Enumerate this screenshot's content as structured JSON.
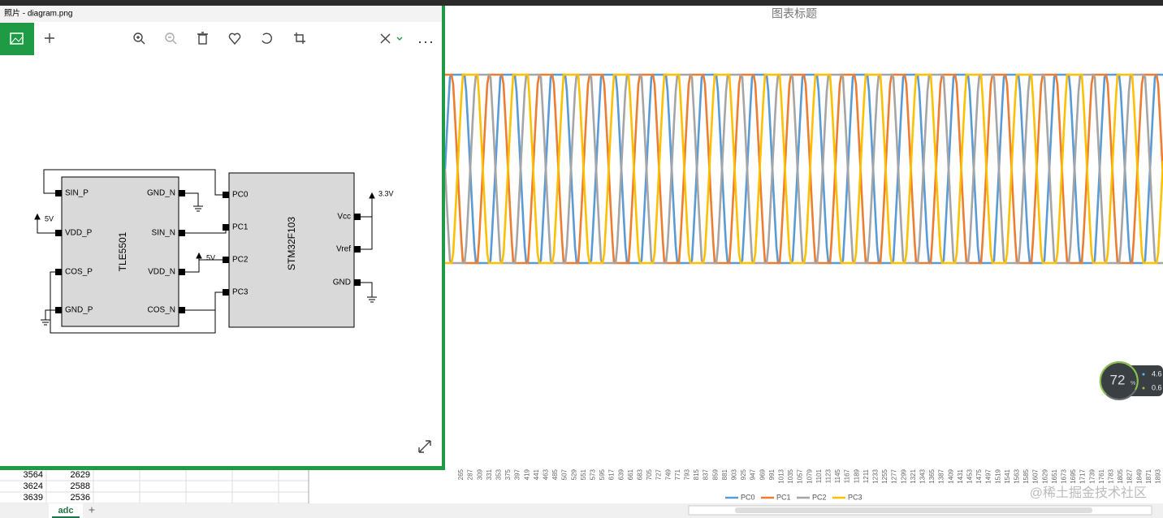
{
  "photos_window": {
    "title": "照片 - diagram.png"
  },
  "diagram": {
    "tle": {
      "name": "TLE5501",
      "left_pins": [
        "SIN_P",
        "VDD_P",
        "COS_P",
        "GND_P"
      ],
      "right_pins": [
        "GND_N",
        "SIN_N",
        "VDD_N",
        "COS_N"
      ]
    },
    "mcu": {
      "name": "STM32F103",
      "left_pins": [
        "PC0",
        "PC1",
        "PC2",
        "PC3"
      ],
      "right_pins": [
        "Vcc",
        "Vref",
        "GND"
      ]
    },
    "power": [
      "5V",
      "5V",
      "3.3V"
    ]
  },
  "chart": {
    "title": "图表标题",
    "series": [
      {
        "name": "PC0",
        "color": "#5b9bd5"
      },
      {
        "name": "PC1",
        "color": "#ed7d31"
      },
      {
        "name": "PC2",
        "color": "#a5a5a5"
      },
      {
        "name": "PC3",
        "color": "#ffc000"
      }
    ],
    "x_labels": [
      "265",
      "287",
      "309",
      "331",
      "353",
      "375",
      "397",
      "419",
      "441",
      "463",
      "485",
      "507",
      "529",
      "551",
      "573",
      "595",
      "617",
      "639",
      "661",
      "683",
      "705",
      "727",
      "749",
      "771",
      "793",
      "815",
      "837",
      "859",
      "881",
      "903",
      "925",
      "947",
      "969",
      "991",
      "1013",
      "1035",
      "1057",
      "1079",
      "1101",
      "1123",
      "1145",
      "1167",
      "1189",
      "1211",
      "1233",
      "1255",
      "1277",
      "1299",
      "1321",
      "1343",
      "1365",
      "1387",
      "1409",
      "1431",
      "1453",
      "1475",
      "1497",
      "1519",
      "1541",
      "1563",
      "1585",
      "1607",
      "1629",
      "1651",
      "1673",
      "1695",
      "1717",
      "1739",
      "1761",
      "1783",
      "1805",
      "1827",
      "1849",
      "1871",
      "1893"
    ]
  },
  "sheet": {
    "rows": [
      [
        "3564",
        "2629"
      ],
      [
        "3624",
        "2588"
      ],
      [
        "3639",
        "2536"
      ]
    ],
    "tab": "adc"
  },
  "widget": {
    "percent": "72",
    "unit": "%",
    "up": "4.6",
    "down": "0.6"
  },
  "watermark": "@稀土掘金技术社区"
}
